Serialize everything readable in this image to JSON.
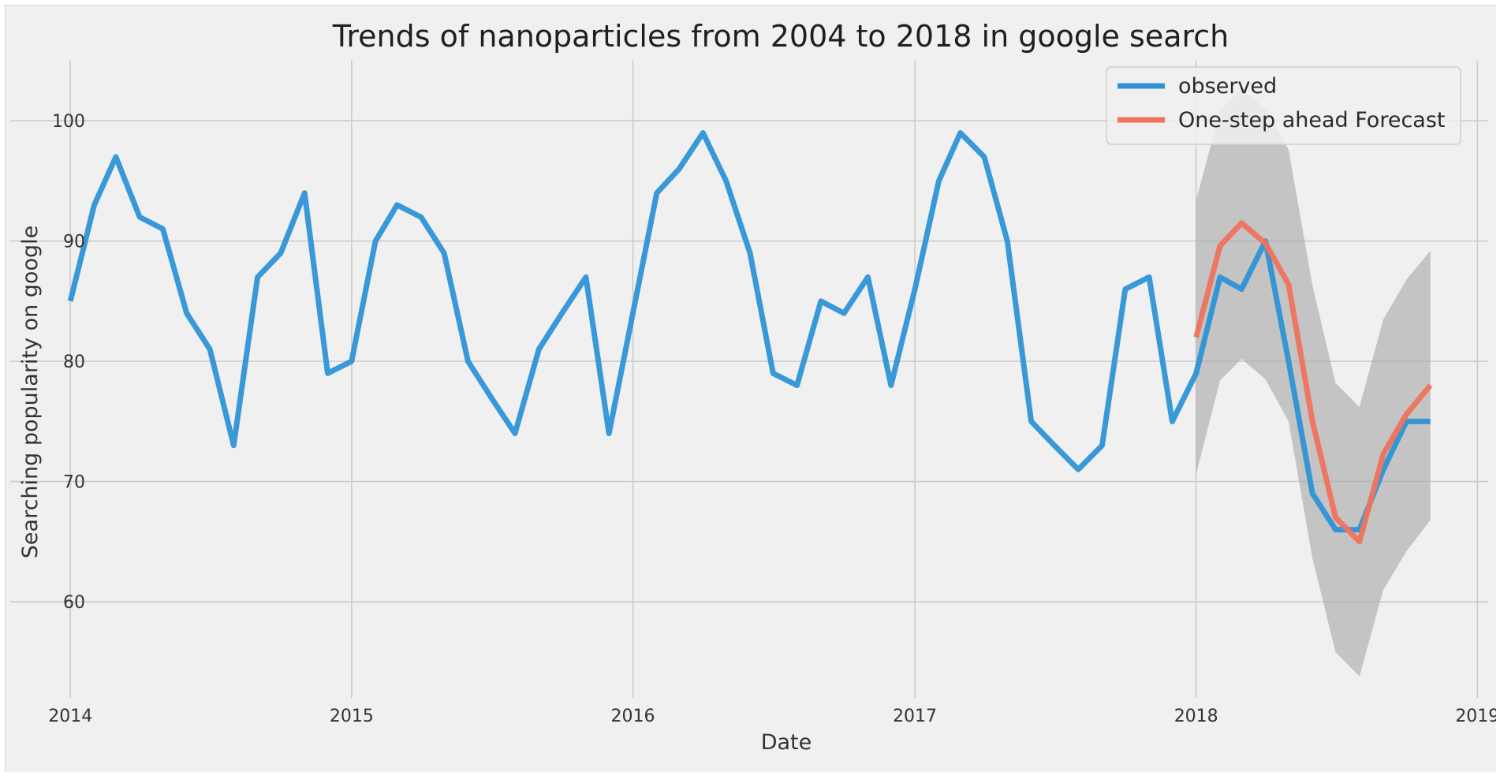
{
  "chart_data": {
    "type": "line",
    "title": "Trends of nanoparticles from 2004 to 2018 in google search",
    "xlabel": "Date",
    "ylabel": "Searching popularity on google",
    "xlim": [
      "2013-10-15",
      "2019-01-15"
    ],
    "ylim": [
      52,
      105
    ],
    "x_ticks": [
      "2014",
      "2015",
      "2016",
      "2017",
      "2018",
      "2019"
    ],
    "y_ticks": [
      60,
      70,
      80,
      90,
      100
    ],
    "grid": true,
    "legend_position": "top-right",
    "colors": {
      "background": "#f0f0f0",
      "grid": "#cbcbcb",
      "observed": "#2e93d6",
      "forecast": "#f0735e",
      "interval": "#a9a9a9"
    },
    "series": [
      {
        "name": "observed",
        "x": [
          "2014-01-01",
          "2014-02-01",
          "2014-03-01",
          "2014-04-01",
          "2014-05-01",
          "2014-06-01",
          "2014-07-01",
          "2014-08-01",
          "2014-09-01",
          "2014-10-01",
          "2014-11-01",
          "2014-12-01",
          "2015-01-01",
          "2015-02-01",
          "2015-03-01",
          "2015-04-01",
          "2015-05-01",
          "2015-06-01",
          "2015-07-01",
          "2015-08-01",
          "2015-09-01",
          "2015-10-01",
          "2015-11-01",
          "2015-12-01",
          "2016-01-01",
          "2016-02-01",
          "2016-03-01",
          "2016-04-01",
          "2016-05-01",
          "2016-06-01",
          "2016-07-01",
          "2016-08-01",
          "2016-09-01",
          "2016-10-01",
          "2016-11-01",
          "2016-12-01",
          "2017-01-01",
          "2017-02-01",
          "2017-03-01",
          "2017-04-01",
          "2017-05-01",
          "2017-06-01",
          "2017-07-01",
          "2017-08-01",
          "2017-09-01",
          "2017-10-01",
          "2017-11-01",
          "2017-12-01",
          "2018-01-01",
          "2018-02-01",
          "2018-03-01",
          "2018-04-01",
          "2018-05-01",
          "2018-06-01",
          "2018-07-01",
          "2018-08-01",
          "2018-09-01",
          "2018-10-01",
          "2018-11-01"
        ],
        "values": [
          85,
          93,
          97,
          92,
          91,
          84,
          81,
          73,
          87,
          89,
          94,
          79,
          80,
          90,
          93,
          92,
          89,
          80,
          77,
          74,
          81,
          84,
          87,
          74,
          84,
          94,
          96,
          99,
          95,
          89,
          79,
          78,
          85,
          84,
          87,
          78,
          86,
          95,
          99,
          97,
          90,
          75,
          73,
          71,
          73,
          86,
          87,
          75,
          79,
          87,
          86,
          90,
          80,
          69,
          66,
          66,
          71,
          75,
          75
        ]
      },
      {
        "name": "One-step ahead Forecast",
        "x": [
          "2018-01-01",
          "2018-02-01",
          "2018-03-01",
          "2018-04-01",
          "2018-05-01",
          "2018-06-01",
          "2018-07-01",
          "2018-08-01",
          "2018-09-01",
          "2018-10-01",
          "2018-11-01"
        ],
        "values": [
          82,
          89.6,
          91.5,
          89.8,
          86.4,
          75,
          67,
          65,
          72.3,
          75.6,
          78
        ],
        "lower": [
          70.6,
          78.4,
          80.2,
          78.5,
          75,
          63.6,
          55.8,
          53.8,
          61,
          64.2,
          66.8
        ],
        "upper": [
          93.4,
          100.8,
          102.7,
          101,
          97.6,
          86.3,
          78.2,
          76.2,
          83.5,
          86.8,
          89.2
        ]
      }
    ]
  }
}
